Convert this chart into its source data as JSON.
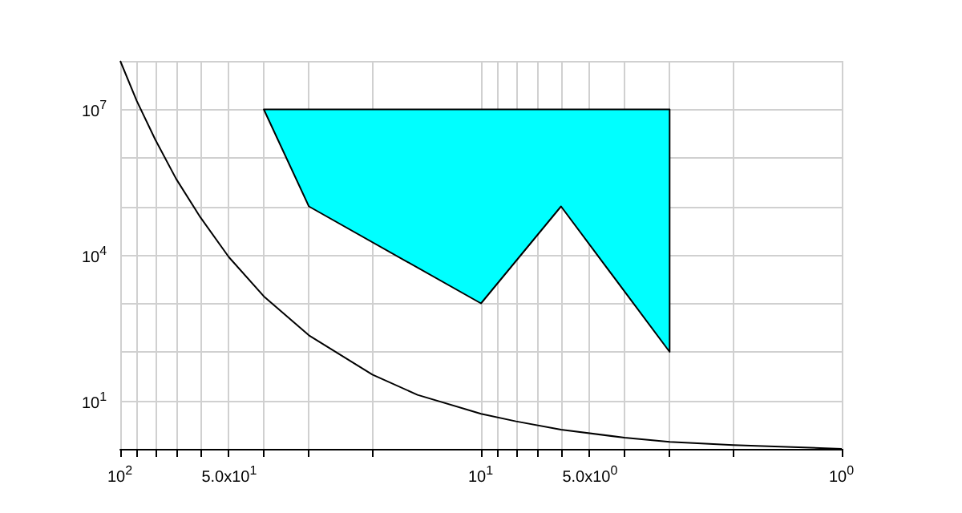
{
  "chart_data": {
    "type": "line",
    "log": "xy",
    "grid": true,
    "marker": "none",
    "xlim": [
      100,
      1
    ],
    "xticks": [
      {
        "value": 100,
        "label": "10$^{2}$"
      },
      {
        "value": 90,
        "label": null
      },
      {
        "value": 80,
        "label": null
      },
      {
        "value": 70,
        "label": null
      },
      {
        "value": 60,
        "label": null
      },
      {
        "value": 50,
        "label": "5.0x10$^{1}$"
      },
      {
        "value": 40,
        "label": null
      },
      {
        "value": 30,
        "label": null
      },
      {
        "value": 20,
        "label": null
      },
      {
        "value": 10,
        "label": "10$^{1}$"
      },
      {
        "value": 9,
        "label": null
      },
      {
        "value": 8,
        "label": null
      },
      {
        "value": 7,
        "label": null
      },
      {
        "value": 6,
        "label": null
      },
      {
        "value": 5,
        "label": "5.0x10$^{0}$"
      },
      {
        "value": 4,
        "label": null
      },
      {
        "value": 3,
        "label": null
      },
      {
        "value": 2,
        "label": null
      },
      {
        "value": 1,
        "label": "10$^{0}$"
      }
    ],
    "ylim": [
      1,
      100000000
    ],
    "yticks": [
      {
        "value": 1,
        "label": null
      },
      {
        "value": 10,
        "label": "10$^{1}$"
      },
      {
        "value": 100,
        "label": null
      },
      {
        "value": 1000,
        "label": null
      },
      {
        "value": 10000,
        "label": "10$^{4}$"
      },
      {
        "value": 100000,
        "label": null
      },
      {
        "value": 1000000,
        "label": null
      },
      {
        "value": 10000000,
        "label": "10$^{7}$"
      },
      {
        "value": 100000000,
        "label": null
      }
    ],
    "series": [
      {
        "color": "#000000",
        "x": [
          100,
          90,
          80,
          70,
          60,
          50,
          40,
          30,
          20,
          15,
          10,
          8,
          6,
          4,
          3,
          2,
          1
        ],
        "values": [
          100000000,
          15000000,
          2400000,
          370000,
          60000,
          9000,
          1400,
          220,
          34,
          13,
          5.3,
          3.7,
          2.5,
          1.7,
          1.4,
          1.2,
          1
        ]
      },
      {
        "type": "area",
        "color": "#00ffff",
        "x": [
          40,
          30,
          10,
          6,
          3,
          3
        ],
        "values": [
          10000000,
          100000,
          1000,
          100000,
          100,
          10000000
        ]
      }
    ]
  }
}
